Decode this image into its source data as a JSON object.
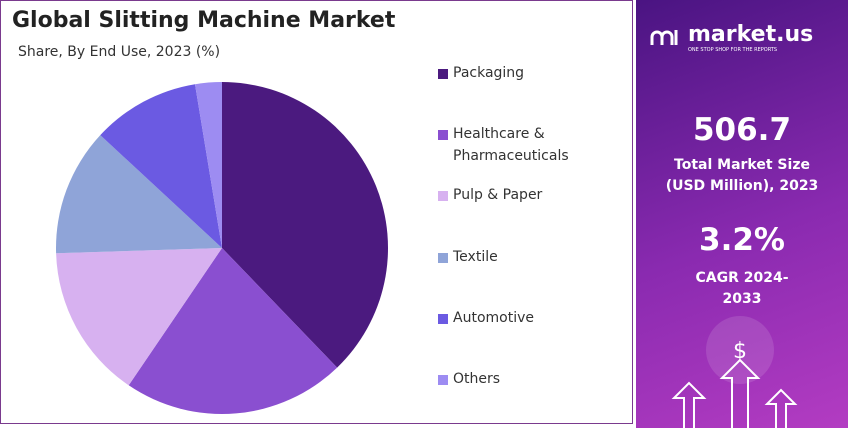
{
  "chart_data": {
    "type": "pie",
    "title": "Global Slitting Machine Market",
    "subtitle": "Share, By End Use, 2023 (%)",
    "categories": [
      "Packaging",
      "Healthcare & Pharmaceuticals",
      "Pulp & Paper",
      "Textile",
      "Automotive",
      "Others"
    ],
    "values": [
      37.8,
      21.7,
      15.0,
      12.4,
      10.5,
      2.6
    ],
    "colors": [
      "#4b1a7f",
      "#8a4fd0",
      "#d7b1f0",
      "#8fa4d8",
      "#6b5ae2",
      "#9d8cf2"
    ],
    "legend": "right"
  },
  "panel": {
    "brand": "market.us",
    "tagline": "ONE STOP SHOP FOR THE REPORTS",
    "market_size": "506.7",
    "market_size_label": "Total Market Size (USD Million), 2023",
    "cagr": "3.2%",
    "cagr_label": "CAGR 2024-2033"
  }
}
